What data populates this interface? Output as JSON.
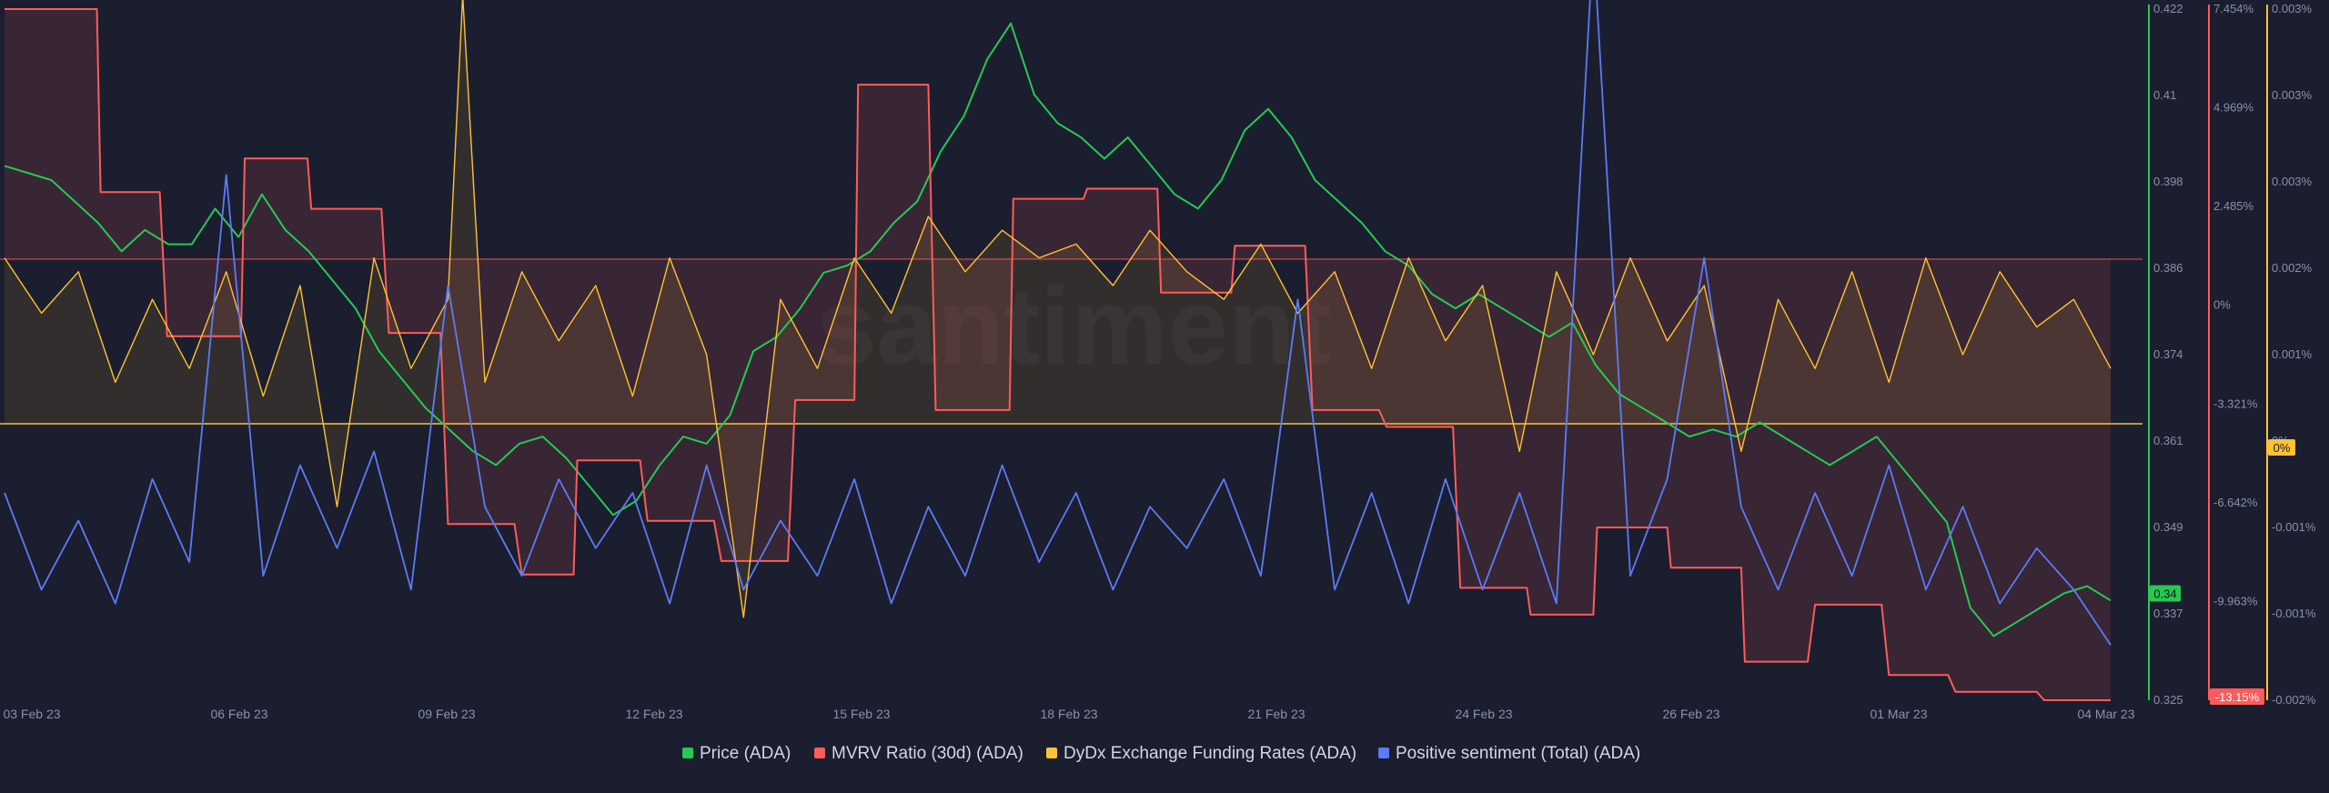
{
  "chart_data": {
    "type": "line",
    "watermark": "santiment",
    "x_ticks": [
      "03 Feb 23",
      "06 Feb 23",
      "09 Feb 23",
      "12 Feb 23",
      "15 Feb 23",
      "18 Feb 23",
      "21 Feb 23",
      "24 Feb 23",
      "26 Feb 23",
      "01 Mar 23",
      "04 Mar 23"
    ],
    "x_range": [
      "2023-02-03",
      "2023-03-04"
    ],
    "axes": {
      "price": {
        "ticks": [
          "0.422",
          "0.41",
          "0.398",
          "0.386",
          "0.374",
          "0.361",
          "0.349",
          "0.337",
          "0.325"
        ],
        "range": [
          0.325,
          0.422
        ],
        "color": "#26c953",
        "current_label": "0.34"
      },
      "mvrv": {
        "ticks": [
          "7.454%",
          "4.969%",
          "2.485%",
          "0%",
          "-3.321%",
          "-6.642%",
          "-9.963%",
          "-13.15%"
        ],
        "range": [
          -13.15,
          7.454
        ],
        "color": "#ff5b5b",
        "current_label": "-13.15%"
      },
      "funding": {
        "ticks": [
          "0.003%",
          "0.003%",
          "0.003%",
          "0.002%",
          "0.001%",
          "0%",
          "-0.001%",
          "-0.001%",
          "-0.002%"
        ],
        "range": [
          -0.002,
          0.003
        ],
        "color": "#ffc233",
        "current_label": "0%"
      }
    },
    "series": [
      {
        "name": "Price (ADA)",
        "color": "#26c953",
        "axis": "price",
        "points": [
          [
            0,
            0.4
          ],
          [
            1,
            0.398
          ],
          [
            2,
            0.392
          ],
          [
            2.5,
            0.388
          ],
          [
            3,
            0.391
          ],
          [
            3.5,
            0.389
          ],
          [
            4,
            0.389
          ],
          [
            4.5,
            0.394
          ],
          [
            5,
            0.39
          ],
          [
            5.5,
            0.396
          ],
          [
            6,
            0.391
          ],
          [
            6.5,
            0.388
          ],
          [
            7,
            0.384
          ],
          [
            7.5,
            0.38
          ],
          [
            8,
            0.374
          ],
          [
            8.5,
            0.37
          ],
          [
            9,
            0.366
          ],
          [
            9.5,
            0.363
          ],
          [
            10,
            0.36
          ],
          [
            10.5,
            0.358
          ],
          [
            11,
            0.361
          ],
          [
            11.5,
            0.362
          ],
          [
            12,
            0.359
          ],
          [
            12.5,
            0.355
          ],
          [
            13,
            0.351
          ],
          [
            13.5,
            0.353
          ],
          [
            14,
            0.358
          ],
          [
            14.5,
            0.362
          ],
          [
            15,
            0.361
          ],
          [
            15.5,
            0.365
          ],
          [
            16,
            0.374
          ],
          [
            16.5,
            0.376
          ],
          [
            17,
            0.38
          ],
          [
            17.5,
            0.385
          ],
          [
            18,
            0.386
          ],
          [
            18.5,
            0.388
          ],
          [
            19,
            0.392
          ],
          [
            19.5,
            0.395
          ],
          [
            20,
            0.402
          ],
          [
            20.5,
            0.407
          ],
          [
            21,
            0.415
          ],
          [
            21.5,
            0.42
          ],
          [
            22,
            0.41
          ],
          [
            22.5,
            0.406
          ],
          [
            23,
            0.404
          ],
          [
            23.5,
            0.401
          ],
          [
            24,
            0.404
          ],
          [
            24.5,
            0.4
          ],
          [
            25,
            0.396
          ],
          [
            25.5,
            0.394
          ],
          [
            26,
            0.398
          ],
          [
            26.5,
            0.405
          ],
          [
            27,
            0.408
          ],
          [
            27.5,
            0.404
          ],
          [
            28,
            0.398
          ],
          [
            28.5,
            0.395
          ],
          [
            29,
            0.392
          ],
          [
            29.5,
            0.388
          ],
          [
            30,
            0.386
          ],
          [
            30.5,
            0.382
          ],
          [
            31,
            0.38
          ],
          [
            31.5,
            0.382
          ],
          [
            32,
            0.38
          ],
          [
            32.5,
            0.378
          ],
          [
            33,
            0.376
          ],
          [
            33.5,
            0.378
          ],
          [
            34,
            0.372
          ],
          [
            34.5,
            0.368
          ],
          [
            35,
            0.366
          ],
          [
            35.5,
            0.364
          ],
          [
            36,
            0.362
          ],
          [
            36.5,
            0.363
          ],
          [
            37,
            0.362
          ],
          [
            37.5,
            0.364
          ],
          [
            38,
            0.362
          ],
          [
            38.5,
            0.36
          ],
          [
            39,
            0.358
          ],
          [
            39.5,
            0.36
          ],
          [
            40,
            0.362
          ],
          [
            40.5,
            0.358
          ],
          [
            41,
            0.354
          ],
          [
            41.5,
            0.35
          ],
          [
            42,
            0.338
          ],
          [
            42.5,
            0.334
          ],
          [
            43,
            0.336
          ],
          [
            43.5,
            0.338
          ],
          [
            44,
            0.34
          ],
          [
            44.5,
            0.341
          ],
          [
            45,
            0.339
          ]
        ]
      },
      {
        "name": "MVRV Ratio (30d) (ADA)",
        "color": "#ff5b5b",
        "axis": "mvrv",
        "points": [
          [
            0,
            7.454
          ],
          [
            1.25,
            7.454
          ],
          [
            1.3,
            2.0
          ],
          [
            2.1,
            2.0
          ],
          [
            2.2,
            -2.3
          ],
          [
            3.2,
            -2.3
          ],
          [
            3.25,
            3.0
          ],
          [
            4.1,
            3.0
          ],
          [
            4.15,
            1.5
          ],
          [
            5.1,
            1.5
          ],
          [
            5.2,
            -2.2
          ],
          [
            5.9,
            -2.2
          ],
          [
            6.0,
            -7.9
          ],
          [
            6.9,
            -7.9
          ],
          [
            7.0,
            -9.4
          ],
          [
            7.7,
            -9.4
          ],
          [
            7.75,
            -6.0
          ],
          [
            8.6,
            -6.0
          ],
          [
            8.7,
            -7.8
          ],
          [
            9.6,
            -7.8
          ],
          [
            9.7,
            -9.0
          ],
          [
            10.6,
            -9.0
          ],
          [
            10.7,
            -4.2
          ],
          [
            11.5,
            -4.2
          ],
          [
            11.55,
            5.2
          ],
          [
            12.5,
            5.2
          ],
          [
            12.6,
            -4.5
          ],
          [
            13.6,
            -4.5
          ],
          [
            13.65,
            1.8
          ],
          [
            14.6,
            1.8
          ],
          [
            14.65,
            2.1
          ],
          [
            15.6,
            2.1
          ],
          [
            15.65,
            -1.0
          ],
          [
            16.6,
            -1.0
          ],
          [
            16.65,
            0.4
          ],
          [
            17.6,
            0.4
          ],
          [
            17.7,
            -4.5
          ],
          [
            18.6,
            -4.5
          ],
          [
            18.7,
            -5.0
          ],
          [
            19.6,
            -5.0
          ],
          [
            19.7,
            -9.8
          ],
          [
            20.6,
            -9.8
          ],
          [
            20.65,
            -10.6
          ],
          [
            21.5,
            -10.6
          ],
          [
            21.55,
            -8.0
          ],
          [
            22.5,
            -8.0
          ],
          [
            22.55,
            -9.2
          ],
          [
            23.5,
            -9.2
          ],
          [
            23.55,
            -12.0
          ],
          [
            24.4,
            -12.0
          ],
          [
            24.5,
            -10.3
          ],
          [
            25.4,
            -10.3
          ],
          [
            25.5,
            -12.4
          ],
          [
            26.3,
            -12.4
          ],
          [
            26.4,
            -12.9
          ],
          [
            27.5,
            -12.9
          ],
          [
            27.6,
            -13.15
          ],
          [
            28.5,
            -13.15
          ]
        ]
      },
      {
        "name": "DyDx Exchange Funding Rates (ADA)",
        "color": "#ffc233",
        "axis": "funding",
        "points": [
          [
            0,
            0.0012
          ],
          [
            0.5,
            0.0008
          ],
          [
            1,
            0.0011
          ],
          [
            1.5,
            0.0003
          ],
          [
            2,
            0.0009
          ],
          [
            2.5,
            0.0004
          ],
          [
            3,
            0.0011
          ],
          [
            3.5,
            0.0002
          ],
          [
            4,
            0.001
          ],
          [
            4.5,
            -0.0006
          ],
          [
            5,
            0.0012
          ],
          [
            5.5,
            0.0004
          ],
          [
            6,
            0.0009
          ],
          [
            6.2,
            0.0031
          ],
          [
            6.5,
            0.0003
          ],
          [
            7,
            0.0011
          ],
          [
            7.5,
            0.0006
          ],
          [
            8,
            0.001
          ],
          [
            8.5,
            0.0002
          ],
          [
            9,
            0.0012
          ],
          [
            9.5,
            0.0005
          ],
          [
            10,
            -0.0014
          ],
          [
            10.5,
            0.0009
          ],
          [
            11,
            0.0004
          ],
          [
            11.5,
            0.0012
          ],
          [
            12,
            0.0008
          ],
          [
            12.5,
            0.0015
          ],
          [
            13,
            0.0011
          ],
          [
            13.5,
            0.0014
          ],
          [
            14,
            0.0012
          ],
          [
            14.5,
            0.0013
          ],
          [
            15,
            0.001
          ],
          [
            15.5,
            0.0014
          ],
          [
            16,
            0.0011
          ],
          [
            16.5,
            0.0009
          ],
          [
            17,
            0.0013
          ],
          [
            17.5,
            0.0008
          ],
          [
            18,
            0.0011
          ],
          [
            18.5,
            0.0004
          ],
          [
            19,
            0.0012
          ],
          [
            19.5,
            0.0006
          ],
          [
            20,
            0.001
          ],
          [
            20.5,
            -0.0002
          ],
          [
            21,
            0.0011
          ],
          [
            21.5,
            0.0005
          ],
          [
            22,
            0.0012
          ],
          [
            22.5,
            0.0006
          ],
          [
            23,
            0.001
          ],
          [
            23.5,
            -0.0002
          ],
          [
            24,
            0.0009
          ],
          [
            24.5,
            0.0004
          ],
          [
            25,
            0.0011
          ],
          [
            25.5,
            0.0003
          ],
          [
            26,
            0.0012
          ],
          [
            26.5,
            0.0005
          ],
          [
            27,
            0.0011
          ],
          [
            27.5,
            0.0007
          ],
          [
            28,
            0.0009
          ],
          [
            28.5,
            0.0004
          ]
        ]
      },
      {
        "name": "Positive sentiment (Total) (ADA)",
        "color": "#5b7cf7",
        "axis": "sentiment",
        "points": [
          [
            0,
            -0.0005
          ],
          [
            0.5,
            -0.0012
          ],
          [
            1,
            -0.0007
          ],
          [
            1.5,
            -0.0013
          ],
          [
            2,
            -0.0004
          ],
          [
            2.5,
            -0.001
          ],
          [
            3,
            0.0018
          ],
          [
            3.5,
            -0.0011
          ],
          [
            4,
            -0.0003
          ],
          [
            4.5,
            -0.0009
          ],
          [
            5,
            -0.0002
          ],
          [
            5.5,
            -0.0012
          ],
          [
            6,
            0.001
          ],
          [
            6.5,
            -0.0006
          ],
          [
            7,
            -0.0011
          ],
          [
            7.5,
            -0.0004
          ],
          [
            8,
            -0.0009
          ],
          [
            8.5,
            -0.0005
          ],
          [
            9,
            -0.0013
          ],
          [
            9.5,
            -0.0003
          ],
          [
            10,
            -0.0012
          ],
          [
            10.5,
            -0.0007
          ],
          [
            11,
            -0.0011
          ],
          [
            11.5,
            -0.0004
          ],
          [
            12,
            -0.0013
          ],
          [
            12.5,
            -0.0006
          ],
          [
            13,
            -0.0011
          ],
          [
            13.5,
            -0.0003
          ],
          [
            14,
            -0.001
          ],
          [
            14.5,
            -0.0005
          ],
          [
            15,
            -0.0012
          ],
          [
            15.5,
            -0.0006
          ],
          [
            16,
            -0.0009
          ],
          [
            16.5,
            -0.0004
          ],
          [
            17,
            -0.0011
          ],
          [
            17.5,
            0.0009
          ],
          [
            18,
            -0.0012
          ],
          [
            18.5,
            -0.0005
          ],
          [
            19,
            -0.0013
          ],
          [
            19.5,
            -0.0004
          ],
          [
            20,
            -0.0012
          ],
          [
            20.5,
            -0.0005
          ],
          [
            21,
            -0.0013
          ],
          [
            21.5,
            0.0035
          ],
          [
            22,
            -0.0011
          ],
          [
            22.5,
            -0.0004
          ],
          [
            23,
            0.0012
          ],
          [
            23.5,
            -0.0006
          ],
          [
            24,
            -0.0012
          ],
          [
            24.5,
            -0.0005
          ],
          [
            25,
            -0.0011
          ],
          [
            25.5,
            -0.0003
          ],
          [
            26,
            -0.0012
          ],
          [
            26.5,
            -0.0006
          ],
          [
            27,
            -0.0013
          ],
          [
            27.5,
            -0.0009
          ],
          [
            28,
            -0.0012
          ],
          [
            28.5,
            -0.0016
          ]
        ]
      }
    ],
    "legend_placement": "bottom-center",
    "grid": false
  }
}
